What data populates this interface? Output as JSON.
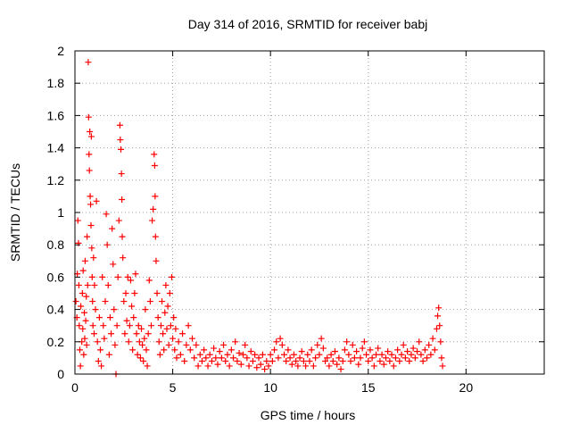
{
  "chart_data": {
    "type": "scatter",
    "title": "Day 314 of 2016, SRMTID for receiver babj",
    "xlabel": "GPS time / hours",
    "ylabel": "SRMTID / TECUs",
    "xlim": [
      0,
      24
    ],
    "ylim": [
      0,
      2
    ],
    "xticks": [
      0,
      5,
      10,
      15,
      20
    ],
    "xtick_labels": [
      "0",
      "5",
      "10",
      "15",
      "20"
    ],
    "yticks": [
      0,
      0.2,
      0.4,
      0.6,
      0.8,
      1,
      1.2,
      1.4,
      1.6,
      1.8,
      2
    ],
    "ytick_labels": [
      "0",
      "0.2",
      "0.4",
      "0.6",
      "0.8",
      "1",
      "1.2",
      "1.4",
      "1.6",
      "1.8",
      "2"
    ],
    "grid": true,
    "colors": {
      "series": "#ff0000",
      "grid": "#a0a0a0",
      "axis": "#000000"
    },
    "series": [
      {
        "name": "SRMTID",
        "marker": "+",
        "points": [
          [
            0.05,
            0.45
          ],
          [
            0.1,
            0.35
          ],
          [
            0.12,
            0.62
          ],
          [
            0.15,
            0.95
          ],
          [
            0.18,
            0.81
          ],
          [
            0.2,
            0.55
          ],
          [
            0.22,
            0.3
          ],
          [
            0.25,
            0.15
          ],
          [
            0.28,
            0.05
          ],
          [
            0.3,
            0.42
          ],
          [
            0.35,
            0.2
          ],
          [
            0.38,
            0.5
          ],
          [
            0.4,
            0.28
          ],
          [
            0.42,
            0.64
          ],
          [
            0.45,
            0.12
          ],
          [
            0.48,
            0.38
          ],
          [
            0.5,
            0.22
          ],
          [
            0.52,
            0.7
          ],
          [
            0.55,
            0.33
          ],
          [
            0.58,
            0.48
          ],
          [
            0.6,
            0.18
          ],
          [
            0.62,
            0.85
          ],
          [
            0.65,
            0.55
          ],
          [
            0.68,
            1.93
          ],
          [
            0.7,
            1.59
          ],
          [
            0.72,
            1.36
          ],
          [
            0.74,
            1.26
          ],
          [
            0.76,
            1.5
          ],
          [
            0.78,
            1.1
          ],
          [
            0.8,
            1.05
          ],
          [
            0.82,
            0.92
          ],
          [
            0.84,
            1.47
          ],
          [
            0.86,
            0.78
          ],
          [
            0.88,
            0.6
          ],
          [
            0.9,
            0.45
          ],
          [
            0.92,
            0.3
          ],
          [
            0.95,
            0.72
          ],
          [
            0.98,
            0.25
          ],
          [
            1.0,
            0.55
          ],
          [
            1.05,
            0.4
          ],
          [
            1.1,
            1.07
          ],
          [
            1.15,
            0.2
          ],
          [
            1.2,
            0.08
          ],
          [
            1.25,
            0.35
          ],
          [
            1.3,
            0.15
          ],
          [
            1.35,
            0.05
          ],
          [
            1.4,
            0.6
          ],
          [
            1.45,
            0.3
          ],
          [
            1.5,
            0.22
          ],
          [
            1.55,
            0.45
          ],
          [
            1.6,
            0.99
          ],
          [
            1.65,
            0.8
          ],
          [
            1.7,
            0.55
          ],
          [
            1.75,
            0.12
          ],
          [
            1.8,
            0.35
          ],
          [
            1.85,
            0.25
          ],
          [
            1.9,
            0.9
          ],
          [
            1.95,
            0.68
          ],
          [
            2.0,
            0.4
          ],
          [
            2.05,
            0.18
          ],
          [
            2.1,
            0.0
          ],
          [
            2.15,
            0.3
          ],
          [
            2.2,
            0.6
          ],
          [
            2.25,
            0.95
          ],
          [
            2.3,
            1.54
          ],
          [
            2.32,
            1.45
          ],
          [
            2.35,
            1.39
          ],
          [
            2.38,
            1.24
          ],
          [
            2.4,
            1.08
          ],
          [
            2.42,
            0.85
          ],
          [
            2.45,
            0.72
          ],
          [
            2.5,
            0.45
          ],
          [
            2.55,
            0.25
          ],
          [
            2.6,
            0.5
          ],
          [
            2.65,
            0.33
          ],
          [
            2.7,
            0.6
          ],
          [
            2.75,
            0.2
          ],
          [
            2.8,
            0.3
          ],
          [
            2.85,
            0.58
          ],
          [
            2.9,
            0.42
          ],
          [
            2.95,
            0.15
          ],
          [
            3.0,
            0.35
          ],
          [
            3.05,
            0.5
          ],
          [
            3.1,
            0.62
          ],
          [
            3.15,
            0.25
          ],
          [
            3.2,
            0.12
          ],
          [
            3.25,
            0.3
          ],
          [
            3.3,
            0.2
          ],
          [
            3.35,
            0.1
          ],
          [
            3.4,
            0.28
          ],
          [
            3.45,
            0.18
          ],
          [
            3.5,
            0.08
          ],
          [
            3.55,
            0.22
          ],
          [
            3.6,
            0.4
          ],
          [
            3.65,
            0.15
          ],
          [
            3.7,
            0.05
          ],
          [
            3.75,
            0.25
          ],
          [
            3.8,
            0.58
          ],
          [
            3.85,
            0.45
          ],
          [
            3.9,
            0.3
          ],
          [
            3.95,
            0.95
          ],
          [
            4.0,
            1.02
          ],
          [
            4.05,
            1.36
          ],
          [
            4.08,
            1.29
          ],
          [
            4.1,
            1.1
          ],
          [
            4.12,
            0.85
          ],
          [
            4.15,
            0.7
          ],
          [
            4.2,
            0.5
          ],
          [
            4.25,
            0.35
          ],
          [
            4.3,
            0.2
          ],
          [
            4.35,
            0.12
          ],
          [
            4.4,
            0.3
          ],
          [
            4.45,
            0.45
          ],
          [
            4.5,
            0.25
          ],
          [
            4.55,
            0.15
          ],
          [
            4.6,
            0.38
          ],
          [
            4.65,
            0.55
          ],
          [
            4.7,
            0.28
          ],
          [
            4.75,
            0.42
          ],
          [
            4.8,
            0.18
          ],
          [
            4.85,
            0.5
          ],
          [
            4.9,
            0.3
          ],
          [
            4.95,
            0.6
          ],
          [
            5.0,
            0.22
          ],
          [
            5.05,
            0.35
          ],
          [
            5.1,
            0.15
          ],
          [
            5.15,
            0.28
          ],
          [
            5.2,
            0.1
          ],
          [
            5.3,
            0.2
          ],
          [
            5.4,
            0.12
          ],
          [
            5.5,
            0.25
          ],
          [
            5.6,
            0.08
          ],
          [
            5.7,
            0.18
          ],
          [
            5.8,
            0.3
          ],
          [
            5.9,
            0.15
          ],
          [
            6.0,
            0.22
          ],
          [
            6.1,
            0.1
          ],
          [
            6.2,
            0.18
          ],
          [
            6.3,
            0.05
          ],
          [
            6.4,
            0.12
          ],
          [
            6.5,
            0.08
          ],
          [
            6.6,
            0.15
          ],
          [
            6.7,
            0.1
          ],
          [
            6.8,
            0.05
          ],
          [
            6.9,
            0.12
          ],
          [
            7.0,
            0.08
          ],
          [
            7.1,
            0.16
          ],
          [
            7.2,
            0.1
          ],
          [
            7.3,
            0.06
          ],
          [
            7.4,
            0.14
          ],
          [
            7.5,
            0.1
          ],
          [
            7.6,
            0.18
          ],
          [
            7.7,
            0.08
          ],
          [
            7.8,
            0.12
          ],
          [
            7.9,
            0.05
          ],
          [
            8.0,
            0.15
          ],
          [
            8.1,
            0.1
          ],
          [
            8.2,
            0.2
          ],
          [
            8.3,
            0.08
          ],
          [
            8.4,
            0.13
          ],
          [
            8.5,
            0.06
          ],
          [
            8.6,
            0.12
          ],
          [
            8.7,
            0.18
          ],
          [
            8.8,
            0.1
          ],
          [
            8.9,
            0.05
          ],
          [
            9.0,
            0.14
          ],
          [
            9.1,
            0.08
          ],
          [
            9.2,
            0.12
          ],
          [
            9.3,
            0.04
          ],
          [
            9.4,
            0.1
          ],
          [
            9.5,
            0.06
          ],
          [
            9.6,
            0.12
          ],
          [
            9.7,
            0.03
          ],
          [
            9.8,
            0.08
          ],
          [
            9.9,
            0.05
          ],
          [
            10.0,
            0.12
          ],
          [
            10.1,
            0.08
          ],
          [
            10.2,
            0.15
          ],
          [
            10.3,
            0.2
          ],
          [
            10.4,
            0.1
          ],
          [
            10.5,
            0.22
          ],
          [
            10.6,
            0.18
          ],
          [
            10.7,
            0.12
          ],
          [
            10.8,
            0.08
          ],
          [
            10.9,
            0.15
          ],
          [
            11.0,
            0.1
          ],
          [
            11.1,
            0.06
          ],
          [
            11.2,
            0.12
          ],
          [
            11.3,
            0.08
          ],
          [
            11.4,
            0.05
          ],
          [
            11.5,
            0.1
          ],
          [
            11.6,
            0.14
          ],
          [
            11.7,
            0.08
          ],
          [
            11.8,
            0.05
          ],
          [
            11.9,
            0.12
          ],
          [
            12.0,
            0.08
          ],
          [
            12.1,
            0.15
          ],
          [
            12.2,
            0.05
          ],
          [
            12.3,
            0.1
          ],
          [
            12.4,
            0.18
          ],
          [
            12.5,
            0.12
          ],
          [
            12.6,
            0.22
          ],
          [
            12.7,
            0.16
          ],
          [
            12.8,
            0.08
          ],
          [
            12.9,
            0.1
          ],
          [
            13.0,
            0.05
          ],
          [
            13.1,
            0.12
          ],
          [
            13.2,
            0.08
          ],
          [
            13.3,
            0.14
          ],
          [
            13.4,
            0.06
          ],
          [
            13.5,
            0.1
          ],
          [
            13.6,
            0.03
          ],
          [
            13.7,
            0.08
          ],
          [
            13.8,
            0.15
          ],
          [
            13.9,
            0.2
          ],
          [
            14.0,
            0.12
          ],
          [
            14.1,
            0.08
          ],
          [
            14.2,
            0.18
          ],
          [
            14.3,
            0.1
          ],
          [
            14.4,
            0.14
          ],
          [
            14.5,
            0.06
          ],
          [
            14.6,
            0.1
          ],
          [
            14.7,
            0.16
          ],
          [
            14.8,
            0.2
          ],
          [
            14.9,
            0.12
          ],
          [
            15.0,
            0.08
          ],
          [
            15.1,
            0.15
          ],
          [
            15.2,
            0.1
          ],
          [
            15.3,
            0.05
          ],
          [
            15.4,
            0.12
          ],
          [
            15.5,
            0.16
          ],
          [
            15.6,
            0.08
          ],
          [
            15.7,
            0.12
          ],
          [
            15.8,
            0.06
          ],
          [
            15.9,
            0.1
          ],
          [
            16.0,
            0.14
          ],
          [
            16.1,
            0.08
          ],
          [
            16.2,
            0.12
          ],
          [
            16.3,
            0.05
          ],
          [
            16.4,
            0.1
          ],
          [
            16.5,
            0.15
          ],
          [
            16.6,
            0.08
          ],
          [
            16.7,
            0.12
          ],
          [
            16.8,
            0.18
          ],
          [
            16.9,
            0.1
          ],
          [
            17.0,
            0.14
          ],
          [
            17.1,
            0.08
          ],
          [
            17.2,
            0.12
          ],
          [
            17.3,
            0.16
          ],
          [
            17.4,
            0.1
          ],
          [
            17.5,
            0.14
          ],
          [
            17.6,
            0.2
          ],
          [
            17.7,
            0.12
          ],
          [
            17.8,
            0.08
          ],
          [
            17.9,
            0.15
          ],
          [
            18.0,
            0.1
          ],
          [
            18.1,
            0.18
          ],
          [
            18.2,
            0.12
          ],
          [
            18.3,
            0.22
          ],
          [
            18.4,
            0.15
          ],
          [
            18.5,
            0.28
          ],
          [
            18.55,
            0.36
          ],
          [
            18.6,
            0.41
          ],
          [
            18.65,
            0.3
          ],
          [
            18.7,
            0.2
          ],
          [
            18.75,
            0.1
          ],
          [
            18.8,
            0.05
          ]
        ]
      }
    ]
  }
}
